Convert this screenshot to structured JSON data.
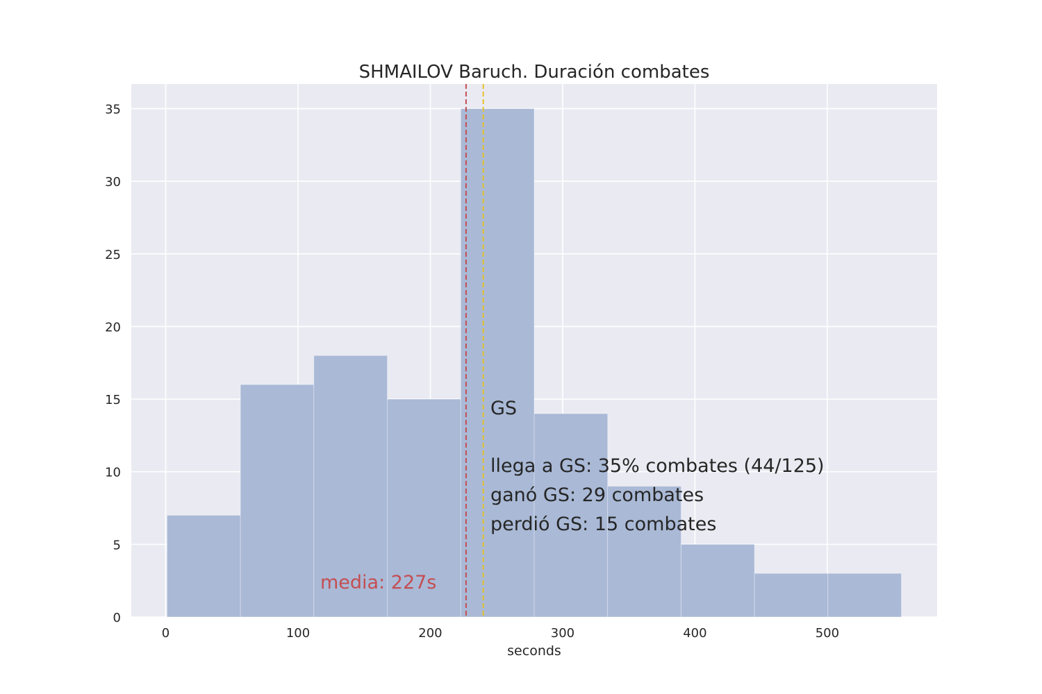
{
  "chart_data": {
    "type": "bar",
    "title": "SHMAILOV Baruch. Duración combates",
    "xlabel": "seconds",
    "ylabel": "",
    "xlim": [
      -26,
      583
    ],
    "ylim": [
      0,
      36.7
    ],
    "xticks": [
      0,
      100,
      200,
      300,
      400,
      500
    ],
    "yticks": [
      0,
      5,
      10,
      15,
      20,
      25,
      30,
      35
    ],
    "grid": true,
    "bins": [
      {
        "x0": 1,
        "x1": 56.5,
        "value": 7
      },
      {
        "x0": 56.5,
        "x1": 112,
        "value": 16
      },
      {
        "x0": 112,
        "x1": 167.5,
        "value": 18
      },
      {
        "x0": 167.5,
        "x1": 223,
        "value": 15
      },
      {
        "x0": 223,
        "x1": 278.5,
        "value": 35
      },
      {
        "x0": 278.5,
        "x1": 334,
        "value": 14
      },
      {
        "x0": 334,
        "x1": 389.5,
        "value": 9
      },
      {
        "x0": 389.5,
        "x1": 445,
        "value": 5
      },
      {
        "x0": 445,
        "x1": 500.5,
        "value": 3
      },
      {
        "x0": 500.5,
        "x1": 556,
        "value": 3
      }
    ],
    "vlines": [
      {
        "name": "media",
        "x": 227,
        "color": "#c44e52"
      },
      {
        "name": "GS",
        "x": 240,
        "color": "#e6c229"
      }
    ],
    "colors": {
      "bar": "#a9b9d6",
      "background": "#eaeaf2",
      "grid": "#ffffff"
    }
  },
  "annotations": {
    "mean_label": "media: 227s",
    "gs_title": "GS",
    "gs_line1": "llega a GS: 35% combates (44/125)",
    "gs_line2": "ganó GS: 29 combates",
    "gs_line3": "perdió GS: 15 combates"
  }
}
